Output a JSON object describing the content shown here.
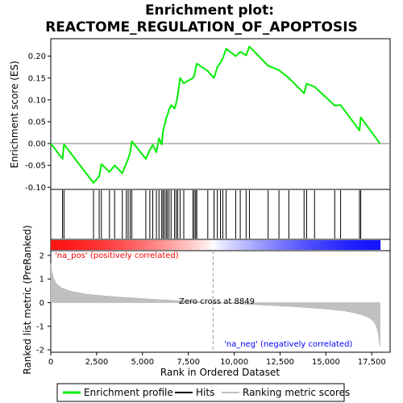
{
  "chart_data": {
    "type": "line",
    "title_line1": "Enrichment plot:",
    "title_line2": "REACTOME_REGULATION_OF_APOPTOSIS",
    "xlabel": "Rank in Ordered Dataset",
    "ylabel_top": "Enrichment score (ES)",
    "ylabel_bottom": "Ranked list metric (PreRanked)",
    "xlim": [
      0,
      18500
    ],
    "x_ticks": [
      0,
      2500,
      5000,
      7500,
      10000,
      12500,
      15000,
      17500
    ],
    "x_tick_labels": [
      "0",
      "2,500",
      "5,000",
      "7,500",
      "10,000",
      "12,500",
      "15,000",
      "17,500"
    ],
    "es_ylim": [
      -0.105,
      0.24
    ],
    "es_ticks": [
      -0.1,
      -0.05,
      0.0,
      0.05,
      0.1,
      0.15,
      0.2
    ],
    "es_tick_labels": [
      "-0.10",
      "-0.05",
      "0.00",
      "0.05",
      "0.10",
      "0.15",
      "0.20"
    ],
    "metric_ylim": [
      -2.1,
      2.2
    ],
    "metric_ticks": [
      -2,
      -1,
      0,
      1,
      2
    ],
    "metric_tick_labels": [
      "-2",
      "-1",
      "0",
      "1",
      "2"
    ],
    "series": [
      {
        "name": "Enrichment profile",
        "color": "#00ee00",
        "x": [
          0,
          640,
          720,
          2330,
          2640,
          2760,
          3200,
          3480,
          3900,
          4120,
          4220,
          4330,
          4420,
          5180,
          5400,
          5560,
          5760,
          5900,
          6050,
          6120,
          6200,
          6290,
          6360,
          6450,
          6560,
          6750,
          6840,
          6920,
          7050,
          7250,
          7750,
          7820,
          7900,
          7960,
          8560,
          8900,
          9080,
          9250,
          9380,
          9560,
          10080,
          10330,
          10650,
          10830,
          11850,
          12440,
          12980,
          13810,
          13950,
          14380,
          15480,
          15800,
          16830,
          16900,
          17950
        ],
        "y": [
          0.0,
          -0.035,
          -0.002,
          -0.09,
          -0.075,
          -0.047,
          -0.065,
          -0.05,
          -0.068,
          -0.045,
          -0.035,
          -0.02,
          0.005,
          -0.035,
          -0.015,
          -0.003,
          -0.02,
          0.012,
          -0.002,
          0.028,
          0.042,
          0.058,
          0.065,
          0.078,
          0.088,
          0.08,
          0.093,
          0.11,
          0.15,
          0.138,
          0.15,
          0.155,
          0.172,
          0.183,
          0.166,
          0.15,
          0.175,
          0.185,
          0.195,
          0.217,
          0.2,
          0.21,
          0.202,
          0.222,
          0.178,
          0.168,
          0.15,
          0.115,
          0.137,
          0.13,
          0.087,
          0.088,
          0.03,
          0.06,
          0.0
        ]
      }
    ],
    "hits": [
      640,
      720,
      2330,
      2640,
      2760,
      3200,
      3480,
      3900,
      4120,
      4220,
      4330,
      4420,
      5180,
      5400,
      5560,
      5760,
      5900,
      6050,
      6120,
      6200,
      6290,
      6360,
      6450,
      6560,
      6750,
      6840,
      6920,
      7050,
      7250,
      7750,
      7820,
      7900,
      7960,
      8560,
      8900,
      9080,
      9250,
      9380,
      9560,
      10080,
      10330,
      10650,
      10830,
      11850,
      12440,
      12980,
      13810,
      13950,
      14380,
      15480,
      15800,
      16830,
      16900
    ],
    "metric_curve": {
      "x": [
        0,
        50,
        150,
        300,
        600,
        1000,
        1500,
        2000,
        3000,
        4000,
        5000,
        6000,
        7000,
        8000,
        8849,
        10000,
        11000,
        12000,
        13000,
        14000,
        15000,
        16000,
        16500,
        17000,
        17300,
        17500,
        17650,
        17750,
        17850,
        17950
      ],
      "y": [
        1.65,
        1.35,
        1.05,
        0.8,
        0.62,
        0.5,
        0.42,
        0.35,
        0.28,
        0.22,
        0.17,
        0.12,
        0.08,
        0.04,
        0.0,
        -0.04,
        -0.08,
        -0.12,
        -0.16,
        -0.21,
        -0.27,
        -0.35,
        -0.42,
        -0.52,
        -0.62,
        -0.72,
        -0.85,
        -1.0,
        -1.3,
        -1.85
      ]
    },
    "zero_cross": 8849,
    "zero_cross_label": "Zero cross at 8849",
    "pos_label": "'na_pos' (positively correlated)",
    "neg_label": "'na_neg' (negatively correlated)",
    "pos_color": "#ff0000",
    "neg_color": "#0000ff",
    "legend": [
      {
        "label": "Enrichment profile",
        "color": "#00ee00"
      },
      {
        "label": "Hits",
        "color": "#000000"
      },
      {
        "label": "Ranking metric scores",
        "color": "#c0c0c0"
      }
    ],
    "legend_placement": "bottom"
  }
}
